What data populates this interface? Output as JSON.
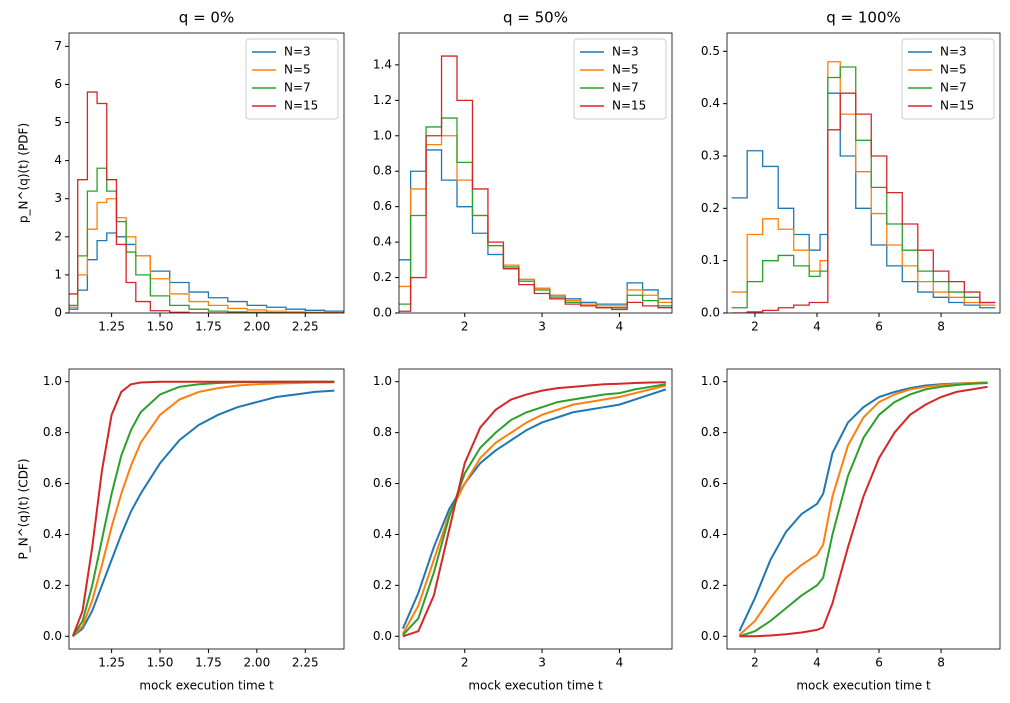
{
  "chart_data": [
    {
      "type": "step",
      "title": "q = 0%",
      "ylabel": "p_N^(q)(t) (PDF)",
      "legend": "upper right",
      "x": [
        1.05,
        1.1,
        1.15,
        1.2,
        1.25,
        1.3,
        1.35,
        1.4,
        1.5,
        1.6,
        1.7,
        1.8,
        1.9,
        2.0,
        2.1,
        2.2,
        2.3,
        2.4
      ],
      "xlim": [
        1.03,
        2.45
      ],
      "ylim": [
        0,
        7.35
      ],
      "xticks": [
        {
          "value": 1.25,
          "label": "1.25"
        },
        {
          "value": 1.5,
          "label": "1.50"
        },
        {
          "value": 1.75,
          "label": "1.75"
        },
        {
          "value": 2.0,
          "label": "2.00"
        },
        {
          "value": 2.25,
          "label": "2.25"
        }
      ],
      "yticks": [
        0,
        1,
        2,
        3,
        4,
        5,
        6,
        7
      ],
      "series": [
        {
          "name": "N=3",
          "color": "#1f77b4",
          "values": [
            0.1,
            0.6,
            1.4,
            1.9,
            2.1,
            2.0,
            1.8,
            1.5,
            1.1,
            0.8,
            0.55,
            0.4,
            0.3,
            0.2,
            0.15,
            0.1,
            0.07,
            0.05
          ]
        },
        {
          "name": "N=5",
          "color": "#ff7f0e",
          "values": [
            0.15,
            1.0,
            2.2,
            2.9,
            3.0,
            2.5,
            2.0,
            1.5,
            0.9,
            0.5,
            0.3,
            0.2,
            0.12,
            0.08,
            0.05,
            0.03,
            0.02,
            0.01
          ]
        },
        {
          "name": "N=7",
          "color": "#2ca02c",
          "values": [
            0.2,
            1.5,
            3.2,
            3.8,
            3.2,
            2.4,
            1.6,
            1.0,
            0.45,
            0.2,
            0.1,
            0.05,
            0.03,
            0.02,
            0.01,
            0,
            0,
            0
          ]
        },
        {
          "name": "N=15",
          "color": "#d62728",
          "values": [
            0.5,
            3.5,
            5.8,
            5.5,
            3.5,
            1.8,
            0.8,
            0.3,
            0.06,
            0.02,
            0,
            0,
            0,
            0,
            0,
            0,
            0,
            0
          ]
        }
      ]
    },
    {
      "type": "step",
      "title": "q = 50%",
      "legend": "upper right",
      "x": [
        1.2,
        1.4,
        1.6,
        1.8,
        2.0,
        2.2,
        2.4,
        2.6,
        2.8,
        3.0,
        3.2,
        3.4,
        3.6,
        3.8,
        4.0,
        4.2,
        4.4,
        4.6
      ],
      "xlim": [
        1.15,
        4.68
      ],
      "ylim": [
        0,
        1.58
      ],
      "xticks": [
        2,
        3,
        4
      ],
      "yticks": [
        {
          "value": 0,
          "label": "0.0"
        },
        {
          "value": 0.2,
          "label": "0.2"
        },
        {
          "value": 0.4,
          "label": "0.4"
        },
        {
          "value": 0.6,
          "label": "0.6"
        },
        {
          "value": 0.8,
          "label": "0.8"
        },
        {
          "value": 1.0,
          "label": "1.0"
        },
        {
          "value": 1.2,
          "label": "1.2"
        },
        {
          "value": 1.4,
          "label": "1.4"
        }
      ],
      "series": [
        {
          "name": "N=3",
          "color": "#1f77b4",
          "values": [
            0.3,
            0.8,
            0.92,
            0.75,
            0.6,
            0.45,
            0.33,
            0.25,
            0.18,
            0.14,
            0.1,
            0.08,
            0.06,
            0.05,
            0.05,
            0.17,
            0.13,
            0.08
          ]
        },
        {
          "name": "N=5",
          "color": "#ff7f0e",
          "values": [
            0.15,
            0.7,
            0.95,
            1.0,
            0.75,
            0.55,
            0.38,
            0.27,
            0.19,
            0.14,
            0.1,
            0.07,
            0.05,
            0.04,
            0.04,
            0.13,
            0.1,
            0.06
          ]
        },
        {
          "name": "N=7",
          "color": "#2ca02c",
          "values": [
            0.05,
            0.55,
            1.05,
            1.1,
            0.85,
            0.55,
            0.38,
            0.26,
            0.18,
            0.13,
            0.09,
            0.06,
            0.04,
            0.03,
            0.03,
            0.1,
            0.07,
            0.04
          ]
        },
        {
          "name": "N=15",
          "color": "#d62728",
          "values": [
            0.01,
            0.2,
            1.0,
            1.45,
            1.2,
            0.7,
            0.4,
            0.25,
            0.16,
            0.11,
            0.08,
            0.05,
            0.04,
            0.03,
            0.02,
            0.06,
            0.04,
            0.03
          ]
        }
      ]
    },
    {
      "type": "step",
      "title": "q = 100%",
      "legend": "upper right",
      "x": [
        1.5,
        2,
        2.5,
        3,
        3.5,
        4,
        4.2,
        4.5,
        5,
        5.5,
        6,
        6.5,
        7,
        7.5,
        8,
        8.5,
        9,
        9.5
      ],
      "xlim": [
        1.1,
        9.9
      ],
      "ylim": [
        0,
        0.535
      ],
      "xticks": [
        2,
        4,
        6,
        8
      ],
      "yticks": [
        {
          "value": 0,
          "label": "0.0"
        },
        0.1,
        0.2,
        0.3,
        0.4,
        0.5
      ],
      "series": [
        {
          "name": "N=3",
          "color": "#1f77b4",
          "values": [
            0.22,
            0.31,
            0.28,
            0.2,
            0.15,
            0.12,
            0.15,
            0.42,
            0.3,
            0.2,
            0.13,
            0.09,
            0.06,
            0.04,
            0.03,
            0.02,
            0.015,
            0.01
          ]
        },
        {
          "name": "N=5",
          "color": "#ff7f0e",
          "values": [
            0.04,
            0.15,
            0.18,
            0.16,
            0.12,
            0.08,
            0.1,
            0.48,
            0.38,
            0.27,
            0.19,
            0.13,
            0.09,
            0.06,
            0.04,
            0.03,
            0.02,
            0.015
          ]
        },
        {
          "name": "N=7",
          "color": "#2ca02c",
          "values": [
            0.01,
            0.06,
            0.1,
            0.11,
            0.09,
            0.07,
            0.08,
            0.45,
            0.47,
            0.33,
            0.24,
            0.17,
            0.12,
            0.08,
            0.06,
            0.04,
            0.03,
            0.02
          ]
        },
        {
          "name": "N=15",
          "color": "#d62728",
          "values": [
            0,
            0.002,
            0.005,
            0.01,
            0.015,
            0.02,
            0.02,
            0.35,
            0.42,
            0.38,
            0.3,
            0.23,
            0.17,
            0.12,
            0.08,
            0.06,
            0.04,
            0.02
          ]
        }
      ]
    },
    {
      "type": "line",
      "ylabel": "P_N^(q)(t) (CDF)",
      "xlabel": "mock execution time t",
      "x": [
        1.05,
        1.1,
        1.15,
        1.2,
        1.25,
        1.3,
        1.35,
        1.4,
        1.5,
        1.6,
        1.7,
        1.8,
        1.9,
        2.0,
        2.1,
        2.2,
        2.3,
        2.4
      ],
      "xlim": [
        1.03,
        2.45
      ],
      "ylim": [
        -0.05,
        1.05
      ],
      "xticks": [
        {
          "value": 1.25,
          "label": "1.25"
        },
        {
          "value": 1.5,
          "label": "1.50"
        },
        {
          "value": 1.75,
          "label": "1.75"
        },
        {
          "value": 2.0,
          "label": "2.00"
        },
        {
          "value": 2.25,
          "label": "2.25"
        }
      ],
      "yticks": [
        {
          "value": 0,
          "label": "0.0"
        },
        0.2,
        0.4,
        0.6,
        0.8,
        {
          "value": 1.0,
          "label": "1.0"
        }
      ],
      "series": [
        {
          "name": "N=3",
          "color": "#1f77b4",
          "values": [
            0,
            0.03,
            0.1,
            0.2,
            0.3,
            0.4,
            0.49,
            0.56,
            0.68,
            0.77,
            0.83,
            0.87,
            0.9,
            0.92,
            0.94,
            0.95,
            0.96,
            0.965
          ]
        },
        {
          "name": "N=5",
          "color": "#ff7f0e",
          "values": [
            0,
            0.04,
            0.14,
            0.28,
            0.43,
            0.56,
            0.67,
            0.76,
            0.87,
            0.93,
            0.96,
            0.975,
            0.985,
            0.99,
            0.993,
            0.995,
            0.997,
            0.998
          ]
        },
        {
          "name": "N=7",
          "color": "#2ca02c",
          "values": [
            0,
            0.06,
            0.2,
            0.38,
            0.56,
            0.71,
            0.81,
            0.88,
            0.95,
            0.98,
            0.99,
            0.995,
            0.998,
            0.999,
            1,
            1,
            1,
            1
          ]
        },
        {
          "name": "N=15",
          "color": "#d62728",
          "values": [
            0,
            0.1,
            0.35,
            0.65,
            0.87,
            0.96,
            0.99,
            0.997,
            1,
            1,
            1,
            1,
            1,
            1,
            1,
            1,
            1,
            1
          ]
        }
      ]
    },
    {
      "type": "line",
      "xlabel": "mock execution time t",
      "x": [
        1.2,
        1.4,
        1.6,
        1.8,
        2.0,
        2.2,
        2.4,
        2.6,
        2.8,
        3.0,
        3.2,
        3.4,
        3.6,
        3.8,
        4.0,
        4.2,
        4.4,
        4.6
      ],
      "xlim": [
        1.15,
        4.68
      ],
      "ylim": [
        -0.05,
        1.05
      ],
      "xticks": [
        2,
        3,
        4
      ],
      "yticks": [
        {
          "value": 0,
          "label": "0.0"
        },
        0.2,
        0.4,
        0.6,
        0.8,
        {
          "value": 1.0,
          "label": "1.0"
        }
      ],
      "series": [
        {
          "name": "N=3",
          "color": "#1f77b4",
          "values": [
            0.03,
            0.17,
            0.35,
            0.5,
            0.6,
            0.68,
            0.73,
            0.77,
            0.81,
            0.84,
            0.86,
            0.88,
            0.89,
            0.9,
            0.91,
            0.93,
            0.95,
            0.97
          ]
        },
        {
          "name": "N=5",
          "color": "#ff7f0e",
          "values": [
            0.01,
            0.12,
            0.3,
            0.48,
            0.6,
            0.7,
            0.76,
            0.8,
            0.84,
            0.87,
            0.89,
            0.91,
            0.92,
            0.93,
            0.94,
            0.955,
            0.97,
            0.985
          ]
        },
        {
          "name": "N=7",
          "color": "#2ca02c",
          "values": [
            0.005,
            0.07,
            0.25,
            0.47,
            0.64,
            0.74,
            0.8,
            0.85,
            0.88,
            0.9,
            0.92,
            0.93,
            0.94,
            0.95,
            0.955,
            0.97,
            0.98,
            0.99
          ]
        },
        {
          "name": "N=15",
          "color": "#d62728",
          "values": [
            0,
            0.02,
            0.16,
            0.42,
            0.68,
            0.82,
            0.89,
            0.93,
            0.95,
            0.965,
            0.975,
            0.98,
            0.985,
            0.99,
            0.992,
            0.995,
            0.997,
            0.998
          ]
        }
      ]
    },
    {
      "type": "line",
      "xlabel": "mock execution time t",
      "x": [
        1.5,
        2,
        2.5,
        3,
        3.5,
        4,
        4.2,
        4.5,
        5,
        5.5,
        6,
        6.5,
        7,
        7.5,
        8,
        8.5,
        9,
        9.5
      ],
      "xlim": [
        1.1,
        9.9
      ],
      "ylim": [
        -0.05,
        1.05
      ],
      "xticks": [
        2,
        4,
        6,
        8
      ],
      "yticks": [
        {
          "value": 0,
          "label": "0.0"
        },
        0.2,
        0.4,
        0.6,
        0.8,
        {
          "value": 1.0,
          "label": "1.0"
        }
      ],
      "series": [
        {
          "name": "N=3",
          "color": "#1f77b4",
          "values": [
            0.02,
            0.15,
            0.3,
            0.41,
            0.48,
            0.52,
            0.56,
            0.72,
            0.84,
            0.9,
            0.94,
            0.96,
            0.975,
            0.985,
            0.99,
            0.993,
            0.995,
            0.997
          ]
        },
        {
          "name": "N=5",
          "color": "#ff7f0e",
          "values": [
            0.005,
            0.06,
            0.15,
            0.23,
            0.28,
            0.32,
            0.36,
            0.55,
            0.75,
            0.86,
            0.92,
            0.95,
            0.97,
            0.98,
            0.987,
            0.992,
            0.995,
            0.997
          ]
        },
        {
          "name": "N=7",
          "color": "#2ca02c",
          "values": [
            0,
            0.02,
            0.06,
            0.11,
            0.16,
            0.2,
            0.23,
            0.4,
            0.63,
            0.78,
            0.87,
            0.92,
            0.95,
            0.97,
            0.98,
            0.987,
            0.992,
            0.995
          ]
        },
        {
          "name": "N=15",
          "color": "#d62728",
          "values": [
            0,
            0,
            0.003,
            0.008,
            0.015,
            0.025,
            0.035,
            0.13,
            0.35,
            0.55,
            0.7,
            0.8,
            0.87,
            0.91,
            0.94,
            0.96,
            0.97,
            0.98
          ]
        }
      ]
    }
  ]
}
